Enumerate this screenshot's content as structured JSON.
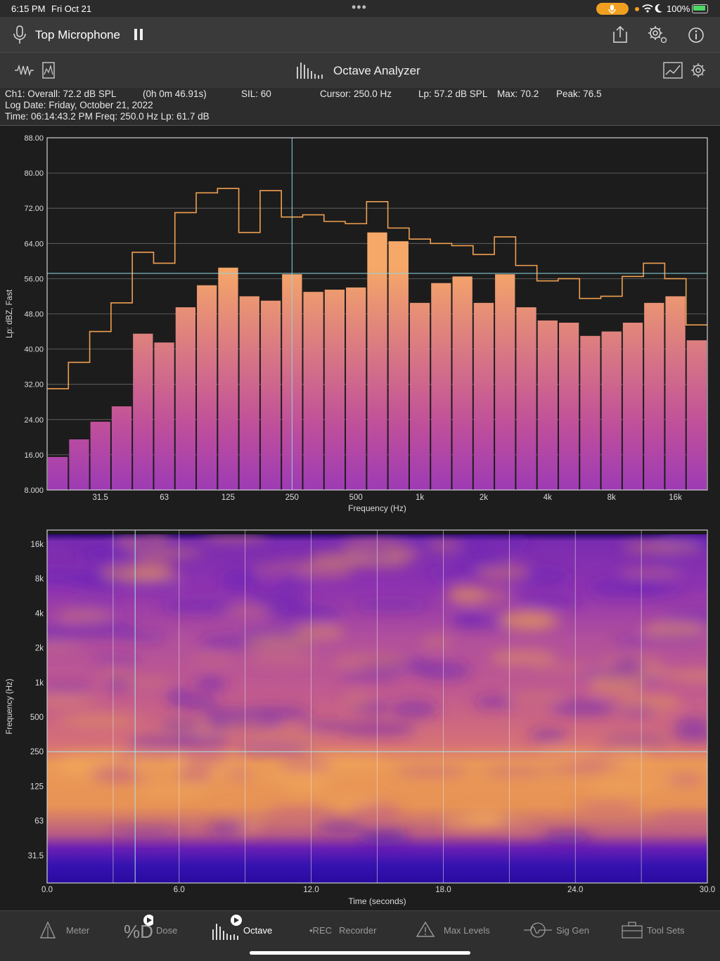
{
  "status_bar": {
    "time": "6:15 PM",
    "date": "Fri Oct 21",
    "battery": "100%"
  },
  "toolbar": {
    "title": "Top Microphone"
  },
  "subheader": {
    "title": "Octave Analyzer"
  },
  "info": {
    "ch1": "Ch1:  Overall: 72.2  dB SPL",
    "elapsed": "(0h  0m 46.91s)",
    "sil": "SIL: 60",
    "cursor": "Cursor: 250.0 Hz",
    "lp": "Lp: 57.2 dB SPL",
    "max": "Max: 70.2",
    "peak": "Peak: 76.5",
    "log_date": "Log Date: Friday, October 21, 2022",
    "time_line": "Time: 06:14:43.2 PM   Freq: 250.0 Hz    Lp: 61.7 dB"
  },
  "chart_data": [
    {
      "type": "bar",
      "ylabel": "Lp: dBZ, Fast",
      "xlabel": "Frequency (Hz)",
      "ylim": [
        8,
        88
      ],
      "y_ticks": [
        "88.00",
        "80.00",
        "72.00",
        "64.00",
        "56.00",
        "48.00",
        "40.00",
        "32.00",
        "24.00",
        "16.00",
        "8.000"
      ],
      "x_ticks": [
        "31.5",
        "63",
        "125",
        "250",
        "500",
        "1k",
        "2k",
        "4k",
        "8k",
        "16k"
      ],
      "x_tick_bands": [
        2,
        5,
        8,
        11,
        14,
        17,
        20,
        23,
        26,
        29
      ],
      "cursor_band": 11,
      "cursor_level": 57.2,
      "values": [
        15.5,
        19.5,
        23.5,
        27,
        43.5,
        41.5,
        49.5,
        54.5,
        58.5,
        52,
        51,
        57,
        53,
        53.5,
        54,
        66.5,
        64.5,
        50.5,
        55,
        56.5,
        50.5,
        57,
        49.5,
        46.5,
        46,
        43,
        44,
        46,
        50.5,
        52,
        42
      ],
      "max_hold": [
        31,
        37,
        44,
        50.5,
        62,
        59.5,
        71,
        75.5,
        76.5,
        66.5,
        76,
        70,
        70.5,
        69,
        68.5,
        73.5,
        67.5,
        65,
        64,
        63.5,
        61.5,
        65.5,
        59,
        55.5,
        56,
        51.5,
        52,
        56.5,
        59.5,
        56,
        45.5
      ],
      "colors": {
        "bar_top": "#f3a06b",
        "bar_mid": "#b13fb0",
        "bar_bottom": "#2b0fa8",
        "max_line": "#f0a050",
        "cursor": "#8fd8e0"
      }
    },
    {
      "type": "heatmap",
      "ylabel": "Frequency (Hz)",
      "xlabel": "Time (seconds)",
      "xlim": [
        0,
        30
      ],
      "x_ticks": [
        "0.0",
        "6.0",
        "12.0",
        "18.0",
        "24.0",
        "30.0"
      ],
      "y_ticks": [
        "16k",
        "8k",
        "4k",
        "2k",
        "1k",
        "500",
        "250",
        "125",
        "63",
        "31.5"
      ],
      "cursor_freq": "250",
      "cursor_time": 4.0
    }
  ],
  "tabs": [
    {
      "label": "Meter",
      "icon": "meter-icon"
    },
    {
      "label": "Dose",
      "icon": "dose-icon"
    },
    {
      "label": "Octave",
      "icon": "octave-icon"
    },
    {
      "label": "Recorder",
      "prefix": "•REC",
      "icon": "rec-icon"
    },
    {
      "label": "Max Levels",
      "icon": "warning-icon"
    },
    {
      "label": "Sig Gen",
      "icon": "sine-wave-icon"
    },
    {
      "label": "Tool Sets",
      "icon": "toolbox-icon"
    }
  ]
}
